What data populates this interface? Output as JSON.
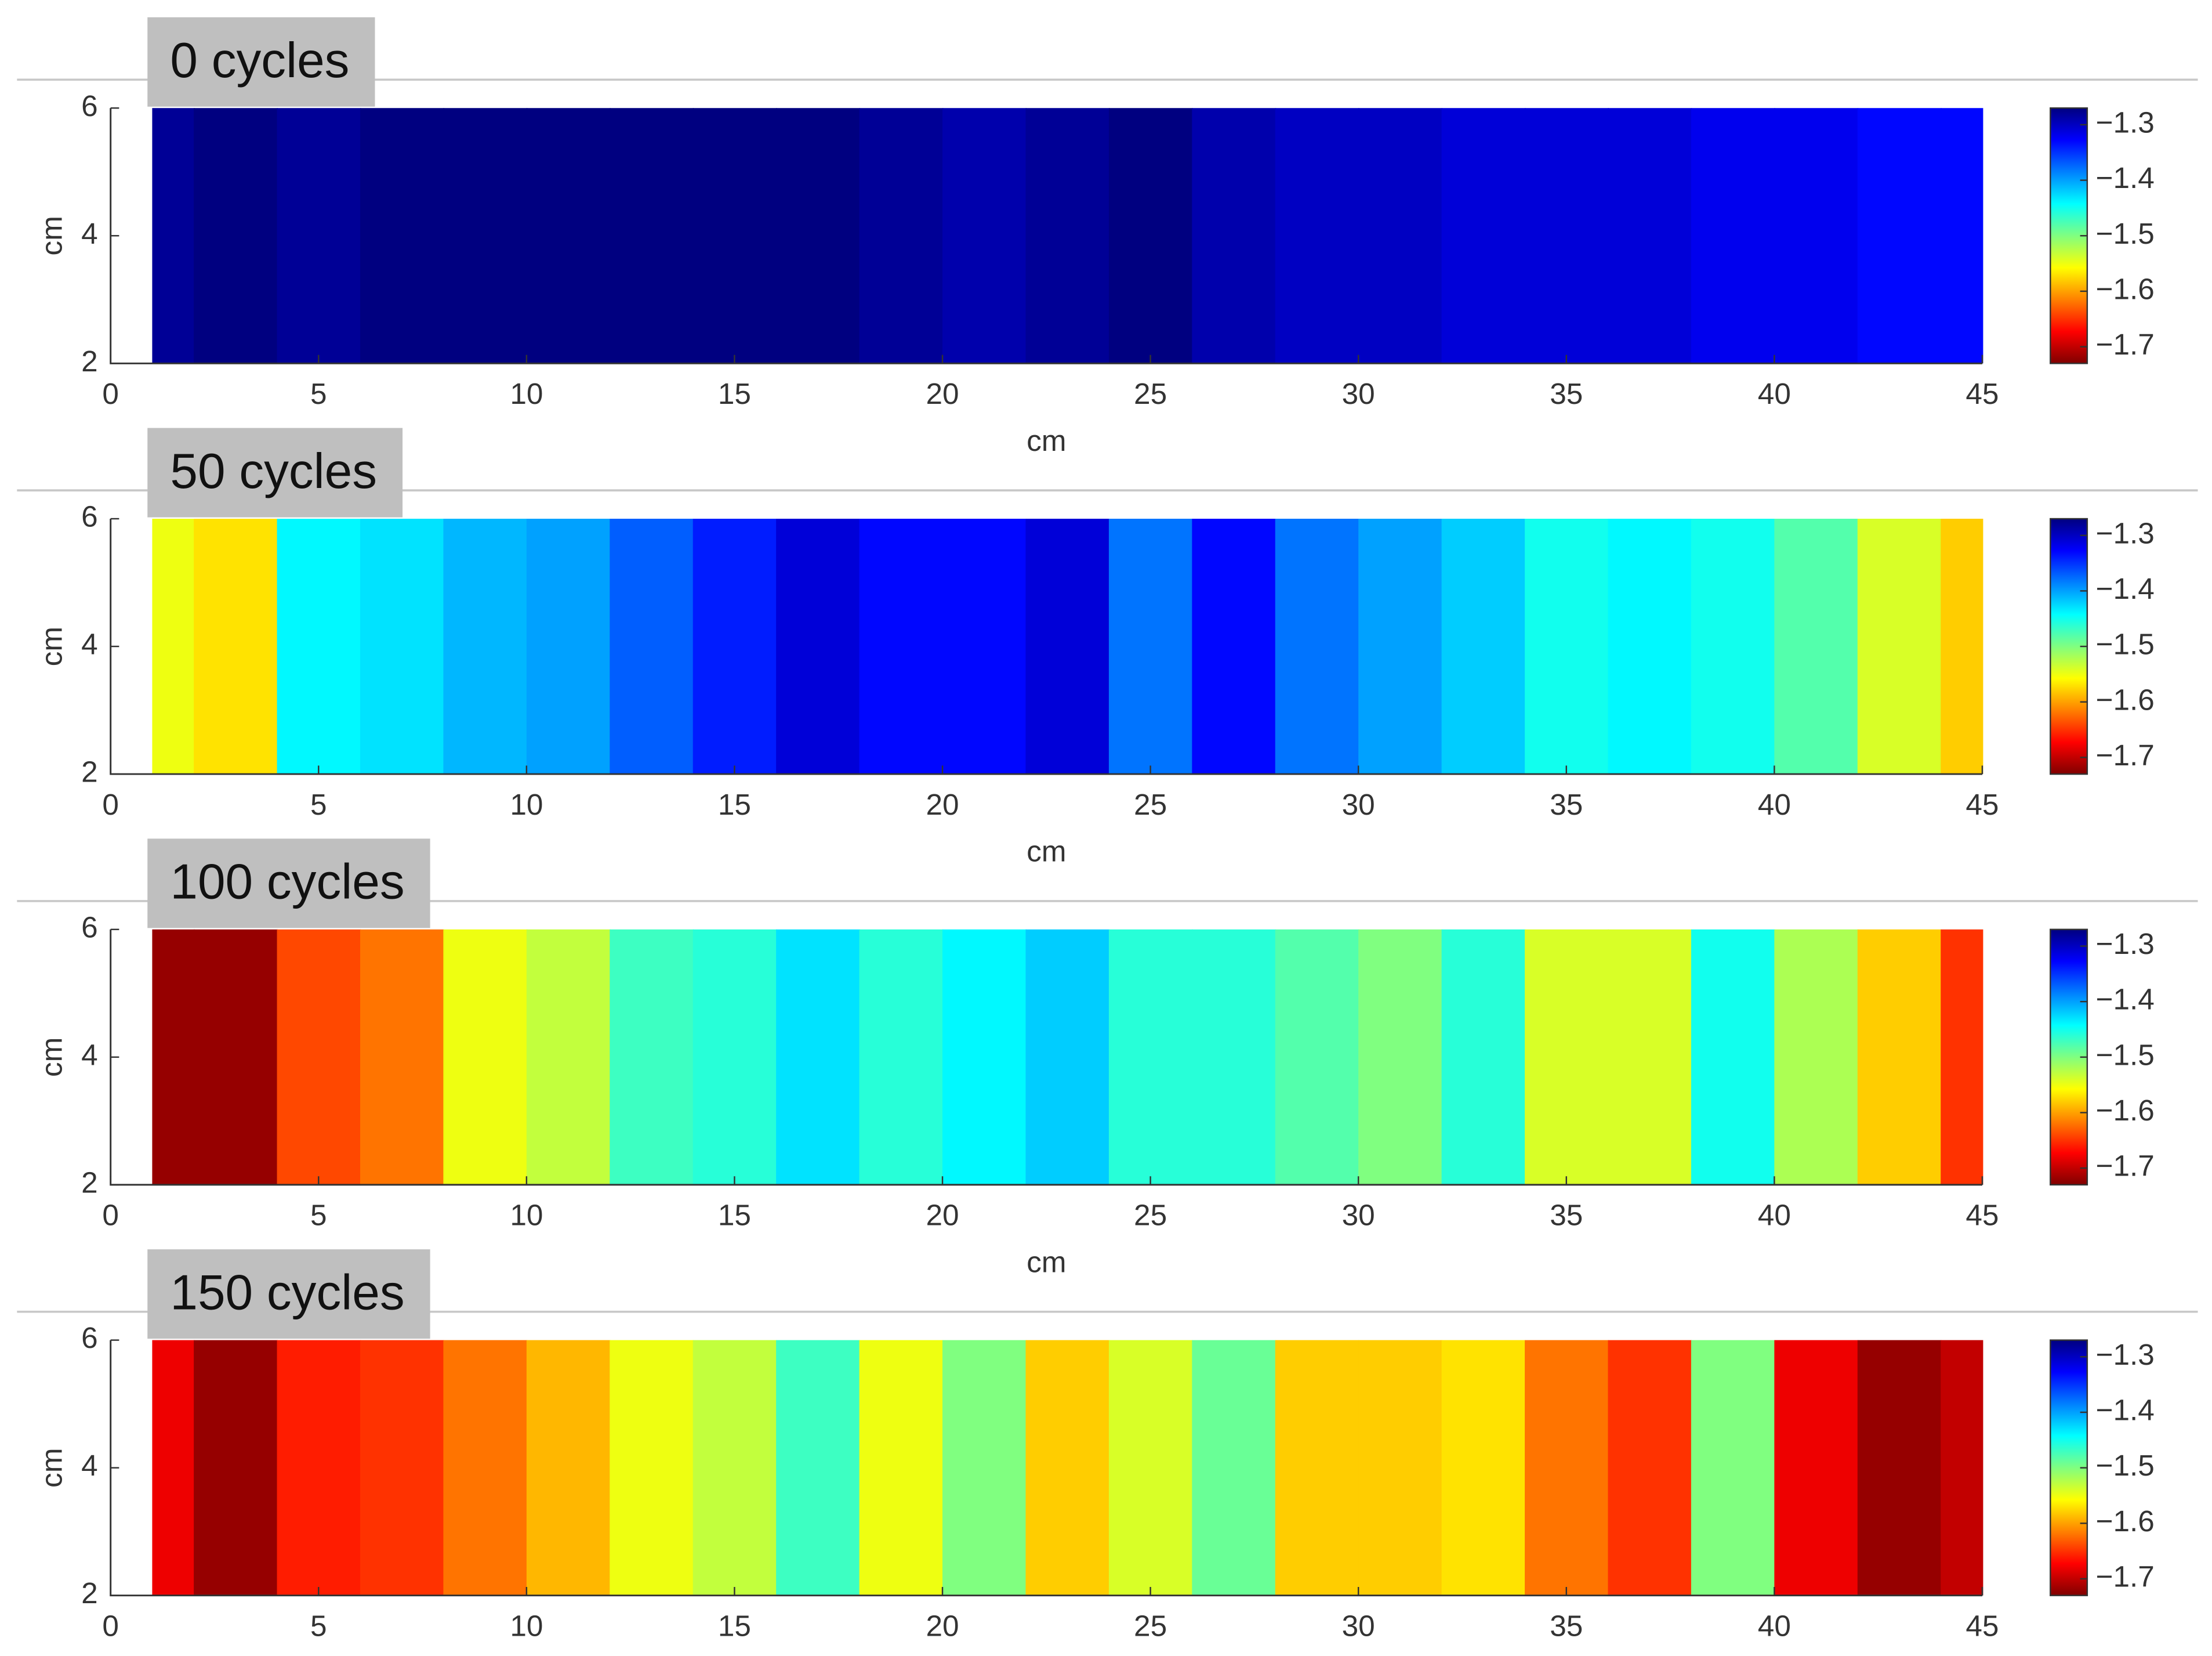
{
  "chart_data": [
    {
      "type": "heatmap",
      "title": "0 cycles",
      "xlabel": "cm",
      "ylabel": "cm",
      "x": [
        1,
        3,
        5,
        7,
        9,
        11,
        13,
        15,
        17,
        19,
        21,
        23,
        25,
        27,
        29,
        31,
        33,
        35,
        37,
        39,
        41,
        43,
        45
      ],
      "values": [
        -1.28,
        -1.27,
        -1.28,
        -1.27,
        -1.27,
        -1.27,
        -1.27,
        -1.27,
        -1.27,
        -1.28,
        -1.29,
        -1.28,
        -1.27,
        -1.29,
        -1.3,
        -1.3,
        -1.31,
        -1.31,
        -1.31,
        -1.32,
        -1.32,
        -1.33,
        -1.33
      ],
      "xlim": [
        0,
        45
      ],
      "xticks": [
        0,
        5,
        10,
        15,
        20,
        25,
        30,
        35,
        40,
        45
      ],
      "ylim": [
        2,
        6
      ],
      "yticks": [
        2,
        4,
        6
      ],
      "colormap": "jet",
      "clim": [
        -1.73,
        -1.27
      ],
      "cticks": [
        {
          "value": -1.3,
          "label": "−1.3"
        },
        {
          "value": -1.4,
          "label": "−1.4"
        },
        {
          "value": -1.5,
          "label": "−1.5"
        },
        {
          "value": -1.6,
          "label": "−1.6"
        },
        {
          "value": -1.7,
          "label": "−1.7"
        }
      ]
    },
    {
      "type": "heatmap",
      "title": "50 cycles",
      "xlabel": "cm",
      "ylabel": "cm",
      "x": [
        1,
        3,
        5,
        7,
        9,
        11,
        13,
        15,
        17,
        19,
        21,
        23,
        25,
        27,
        29,
        31,
        33,
        35,
        37,
        39,
        41,
        43,
        45
      ],
      "values": [
        -1.55,
        -1.57,
        -1.44,
        -1.43,
        -1.41,
        -1.4,
        -1.37,
        -1.34,
        -1.31,
        -1.33,
        -1.33,
        -1.31,
        -1.38,
        -1.33,
        -1.38,
        -1.4,
        -1.42,
        -1.45,
        -1.44,
        -1.45,
        -1.48,
        -1.54,
        -1.58
      ],
      "xlim": [
        0,
        45
      ],
      "xticks": [
        0,
        5,
        10,
        15,
        20,
        25,
        30,
        35,
        40,
        45
      ],
      "ylim": [
        2,
        6
      ],
      "yticks": [
        2,
        4,
        6
      ],
      "colormap": "jet",
      "clim": [
        -1.73,
        -1.27
      ],
      "cticks": [
        {
          "value": -1.3,
          "label": "−1.3"
        },
        {
          "value": -1.4,
          "label": "−1.4"
        },
        {
          "value": -1.5,
          "label": "−1.5"
        },
        {
          "value": -1.6,
          "label": "−1.6"
        },
        {
          "value": -1.7,
          "label": "−1.7"
        }
      ]
    },
    {
      "type": "heatmap",
      "title": "100 cycles",
      "xlabel": "cm",
      "ylabel": "cm",
      "x": [
        1,
        3,
        5,
        7,
        9,
        11,
        13,
        15,
        17,
        19,
        21,
        23,
        25,
        27,
        29,
        31,
        33,
        35,
        37,
        39,
        41,
        43,
        45
      ],
      "values": [
        -1.72,
        -1.72,
        -1.64,
        -1.62,
        -1.55,
        -1.53,
        -1.47,
        -1.46,
        -1.43,
        -1.46,
        -1.44,
        -1.42,
        -1.46,
        -1.46,
        -1.48,
        -1.5,
        -1.46,
        -1.54,
        -1.54,
        -1.45,
        -1.52,
        -1.58,
        -1.65
      ],
      "xlim": [
        0,
        45
      ],
      "xticks": [
        0,
        5,
        10,
        15,
        20,
        25,
        30,
        35,
        40,
        45
      ],
      "ylim": [
        2,
        6
      ],
      "yticks": [
        2,
        4,
        6
      ],
      "colormap": "jet",
      "clim": [
        -1.73,
        -1.27
      ],
      "cticks": [
        {
          "value": -1.3,
          "label": "−1.3"
        },
        {
          "value": -1.4,
          "label": "−1.4"
        },
        {
          "value": -1.5,
          "label": "−1.5"
        },
        {
          "value": -1.6,
          "label": "−1.6"
        },
        {
          "value": -1.7,
          "label": "−1.7"
        }
      ]
    },
    {
      "type": "heatmap",
      "title": "150 cycles",
      "ylabel": "cm",
      "x": [
        1,
        3,
        5,
        7,
        9,
        11,
        13,
        15,
        17,
        19,
        21,
        23,
        25,
        27,
        29,
        31,
        33,
        35,
        37,
        39,
        41,
        43,
        45
      ],
      "values": [
        -1.68,
        -1.72,
        -1.66,
        -1.65,
        -1.62,
        -1.59,
        -1.55,
        -1.53,
        -1.47,
        -1.55,
        -1.5,
        -1.58,
        -1.54,
        -1.49,
        -1.58,
        -1.58,
        -1.57,
        -1.62,
        -1.65,
        -1.5,
        -1.68,
        -1.72,
        -1.7
      ],
      "xlim": [
        0,
        45
      ],
      "xticks": [
        0,
        5,
        10,
        15,
        20,
        25,
        30,
        35,
        40,
        45
      ],
      "ylim": [
        2,
        6
      ],
      "yticks": [
        2,
        4,
        6
      ],
      "colormap": "jet",
      "clim": [
        -1.73,
        -1.27
      ],
      "cticks": [
        {
          "value": -1.3,
          "label": "−1.3"
        },
        {
          "value": -1.4,
          "label": "−1.4"
        },
        {
          "value": -1.5,
          "label": "−1.5"
        },
        {
          "value": -1.6,
          "label": "−1.6"
        },
        {
          "value": -1.7,
          "label": "−1.7"
        }
      ]
    }
  ]
}
